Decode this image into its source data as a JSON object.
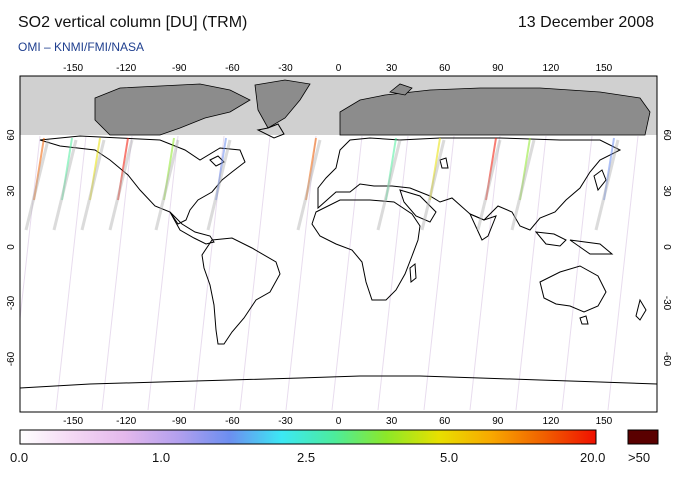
{
  "header": {
    "title": "SO2 vertical column [DU] (TRM)",
    "date": "13 December 2008",
    "credit": "OMI  –  KNMI/FMI/NASA"
  },
  "map": {
    "lon_ticks": [
      -150,
      -120,
      -90,
      -60,
      -30,
      0,
      30,
      60,
      90,
      120,
      150
    ],
    "lat_ticks": [
      60,
      30,
      0,
      -30,
      -60
    ],
    "no_data_color": "#d0d0d0",
    "land_dark_color": "#8c8c8c",
    "coast_color": "#000000"
  },
  "colorbar": {
    "labels": [
      "0.0",
      "1.0",
      "2.5",
      "5.0",
      "20.0"
    ],
    "overflow_label": ">50",
    "overflow_color": "#5a0000",
    "stops": [
      "#ffffff",
      "#f4d8f4",
      "#e4b8ec",
      "#b4a0ee",
      "#6c8ef0",
      "#3ce8f4",
      "#4cec9c",
      "#8ce828",
      "#e8e000",
      "#f8a800",
      "#f06000",
      "#f01000"
    ]
  }
}
